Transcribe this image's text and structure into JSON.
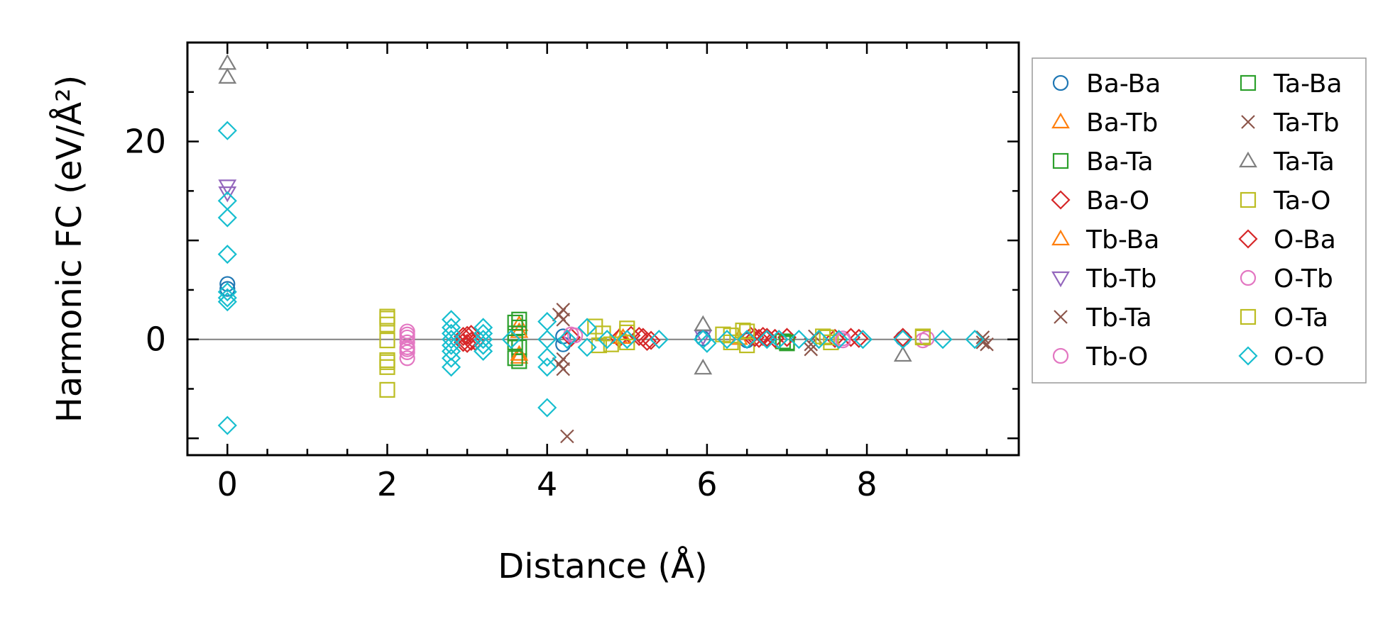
{
  "chart_data": {
    "type": "scatter",
    "title": "",
    "xlabel": "Distance (Å)",
    "ylabel": "Harmonic FC (eV/Å²)",
    "xlim": [
      -0.5,
      9.9
    ],
    "ylim": [
      -11.7,
      30
    ],
    "x_ticks": [
      0,
      2,
      4,
      6,
      8
    ],
    "x_tick_labels": [
      "0",
      "2",
      "4",
      "6",
      "8"
    ],
    "y_ticks": [
      0,
      20
    ],
    "y_tick_labels": [
      "0",
      "20"
    ],
    "zero_line": true,
    "legend_position": "outside-right",
    "series": [
      {
        "name": "Ba-Ba",
        "marker": "circle",
        "color": "#1f77b4",
        "points": [
          [
            0,
            5.6
          ],
          [
            0,
            5.1
          ],
          [
            4.2,
            0.3
          ],
          [
            4.2,
            -0.5
          ],
          [
            5.95,
            0.1
          ],
          [
            6.5,
            -0.1
          ],
          [
            8.45,
            0.1
          ]
        ]
      },
      {
        "name": "Ba-Tb",
        "marker": "triangle-up",
        "color": "#ff7f0e",
        "points": [
          [
            3.65,
            1.5
          ],
          [
            3.65,
            -1.8
          ],
          [
            4.9,
            0.2
          ],
          [
            6.4,
            0.1
          ]
        ]
      },
      {
        "name": "Ba-Ta",
        "marker": "square",
        "color": "#2ca02c",
        "points": [
          [
            3.65,
            2.0
          ],
          [
            3.65,
            1.2
          ],
          [
            3.65,
            -0.8
          ],
          [
            3.65,
            -2.2
          ],
          [
            6.95,
            -0.2
          ],
          [
            7.0,
            -0.4
          ]
        ]
      },
      {
        "name": "Ba-O",
        "marker": "diamond",
        "color": "#d62728",
        "points": [
          [
            2.95,
            0.3
          ],
          [
            3.0,
            -0.4
          ],
          [
            3.05,
            0.5
          ],
          [
            3.1,
            -0.2
          ],
          [
            4.3,
            0.2
          ],
          [
            4.9,
            0.1
          ],
          [
            5.05,
            0.4
          ],
          [
            5.2,
            0.2
          ],
          [
            5.3,
            -0.1
          ],
          [
            6.55,
            0.3
          ],
          [
            6.65,
            0.1
          ],
          [
            6.7,
            0.3
          ],
          [
            6.85,
            0.1
          ],
          [
            7.0,
            0.2
          ],
          [
            7.6,
            0.1
          ],
          [
            7.9,
            0.1
          ],
          [
            8.45,
            0.2
          ]
        ]
      },
      {
        "name": "Tb-Ba",
        "marker": "triangle-up",
        "color": "#ff7f0e",
        "points": [
          [
            3.65,
            0.8
          ],
          [
            3.65,
            -1.5
          ],
          [
            4.95,
            0.2
          ]
        ]
      },
      {
        "name": "Tb-Tb",
        "marker": "triangle-down",
        "color": "#9467bd",
        "points": [
          [
            0,
            15.5
          ],
          [
            0,
            14.8
          ],
          [
            5.95,
            0.3
          ]
        ]
      },
      {
        "name": "Tb-Ta",
        "marker": "x",
        "color": "#8c564b",
        "points": [
          [
            4.2,
            3.0
          ],
          [
            4.2,
            2.0
          ],
          [
            4.2,
            -2.0
          ],
          [
            4.2,
            -3.0
          ],
          [
            4.25,
            -9.8
          ],
          [
            7.3,
            -0.5
          ],
          [
            7.35,
            0.3
          ],
          [
            9.45,
            0.2
          ],
          [
            9.5,
            -0.5
          ]
        ]
      },
      {
        "name": "Tb-O",
        "marker": "circle",
        "color": "#e377c2",
        "points": [
          [
            2.25,
            0.8
          ],
          [
            2.25,
            0.2
          ],
          [
            2.25,
            -0.3
          ],
          [
            2.25,
            -0.8
          ],
          [
            2.25,
            -1.3
          ],
          [
            2.25,
            -1.9
          ],
          [
            4.35,
            0.4
          ],
          [
            7.7,
            0.1
          ],
          [
            8.7,
            -0.1
          ]
        ]
      },
      {
        "name": "Ta-Ba",
        "marker": "square",
        "color": "#2ca02c",
        "points": [
          [
            3.6,
            1.7
          ],
          [
            3.6,
            0.6
          ],
          [
            3.6,
            -0.3
          ],
          [
            3.6,
            -1.9
          ],
          [
            7.0,
            -0.3
          ]
        ]
      },
      {
        "name": "Ta-Tb",
        "marker": "x",
        "color": "#8c564b",
        "points": [
          [
            4.15,
            2.5
          ],
          [
            4.15,
            -2.5
          ],
          [
            7.3,
            -1.0
          ],
          [
            9.45,
            -0.3
          ]
        ]
      },
      {
        "name": "Ta-Ta",
        "marker": "triangle-up",
        "color": "#7f7f7f",
        "points": [
          [
            0,
            27.9
          ],
          [
            0,
            26.5
          ],
          [
            5.95,
            1.5
          ],
          [
            5.95,
            -2.9
          ],
          [
            8.45,
            -1.6
          ]
        ]
      },
      {
        "name": "Ta-O",
        "marker": "square",
        "color": "#bcbd22",
        "points": [
          [
            2.0,
            2.1
          ],
          [
            2.0,
            1.5
          ],
          [
            2.0,
            -0.1
          ],
          [
            2.0,
            -2.1
          ],
          [
            2.0,
            -2.8
          ],
          [
            2.0,
            -5.1
          ],
          [
            4.7,
            0.6
          ],
          [
            4.8,
            -0.5
          ],
          [
            5.0,
            1.1
          ],
          [
            5.0,
            -0.3
          ],
          [
            6.2,
            0.5
          ],
          [
            6.3,
            -0.3
          ],
          [
            6.45,
            0.9
          ],
          [
            6.5,
            -0.6
          ],
          [
            7.5,
            0.2
          ],
          [
            7.55,
            -0.3
          ],
          [
            8.7,
            0.3
          ]
        ]
      },
      {
        "name": "O-Ba",
        "marker": "diamond",
        "color": "#d62728",
        "points": [
          [
            2.95,
            -0.3
          ],
          [
            3.0,
            0.4
          ],
          [
            3.05,
            -0.2
          ],
          [
            5.15,
            0.3
          ],
          [
            5.25,
            -0.2
          ],
          [
            6.6,
            0.2
          ],
          [
            6.75,
            0.2
          ],
          [
            7.8,
            0.2
          ]
        ]
      },
      {
        "name": "O-Tb",
        "marker": "circle",
        "color": "#e377c2",
        "points": [
          [
            2.25,
            0.5
          ],
          [
            2.25,
            -1.0
          ],
          [
            4.3,
            0.5
          ],
          [
            7.7,
            -0.1
          ],
          [
            8.75,
            0.1
          ]
        ]
      },
      {
        "name": "O-Ta",
        "marker": "square",
        "color": "#bcbd22",
        "points": [
          [
            2.0,
            2.3
          ],
          [
            2.0,
            -2.3
          ],
          [
            4.6,
            1.3
          ],
          [
            4.65,
            -0.6
          ],
          [
            5.0,
            0.7
          ],
          [
            6.3,
            0.4
          ],
          [
            6.5,
            0.8
          ],
          [
            7.45,
            0.3
          ],
          [
            8.7,
            0.2
          ]
        ]
      },
      {
        "name": "O-O",
        "marker": "diamond",
        "color": "#17becf",
        "points": [
          [
            0,
            21.1
          ],
          [
            0,
            14.0
          ],
          [
            0,
            12.3
          ],
          [
            0,
            8.6
          ],
          [
            0,
            4.8
          ],
          [
            0,
            4.2
          ],
          [
            0,
            3.8
          ],
          [
            0,
            -8.7
          ],
          [
            2.8,
            2.0
          ],
          [
            2.8,
            1.2
          ],
          [
            2.8,
            0.6
          ],
          [
            2.8,
            0.0
          ],
          [
            2.8,
            -0.6
          ],
          [
            2.8,
            -1.2
          ],
          [
            2.8,
            -1.9
          ],
          [
            2.8,
            -2.8
          ],
          [
            3.2,
            1.2
          ],
          [
            3.2,
            0.6
          ],
          [
            3.2,
            0.0
          ],
          [
            3.2,
            -0.6
          ],
          [
            3.2,
            -1.2
          ],
          [
            3.55,
            0.0
          ],
          [
            4.0,
            1.8
          ],
          [
            4.0,
            0.0
          ],
          [
            4.0,
            -1.8
          ],
          [
            4.0,
            -2.8
          ],
          [
            4.0,
            -6.9
          ],
          [
            4.25,
            0.0
          ],
          [
            4.5,
            1.2
          ],
          [
            4.5,
            -0.8
          ],
          [
            4.75,
            0.0
          ],
          [
            5.0,
            0.0
          ],
          [
            5.4,
            0.0
          ],
          [
            5.95,
            0.0
          ],
          [
            6.0,
            -0.4
          ],
          [
            6.25,
            0.0
          ],
          [
            6.5,
            0.0
          ],
          [
            6.75,
            0.0
          ],
          [
            6.9,
            0.0
          ],
          [
            7.15,
            0.0
          ],
          [
            7.4,
            0.0
          ],
          [
            7.65,
            0.0
          ],
          [
            7.95,
            0.0
          ],
          [
            8.45,
            0.0
          ],
          [
            8.95,
            0.0
          ],
          [
            9.35,
            0.0
          ]
        ]
      }
    ]
  }
}
